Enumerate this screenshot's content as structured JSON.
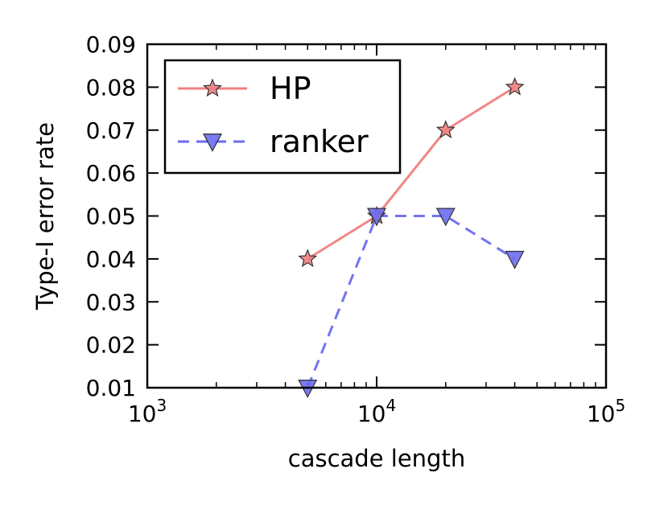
{
  "chart_data": {
    "type": "line",
    "title": "",
    "xlabel": "cascade length",
    "ylabel": "Type-I error rate",
    "xscale": "log",
    "xlim": [
      1000,
      100000
    ],
    "ylim": [
      0.01,
      0.09
    ],
    "grid": false,
    "legend_position": "top-left",
    "x_ticks": [
      {
        "value": 1000,
        "base": "10",
        "exp": "3"
      },
      {
        "value": 10000,
        "base": "10",
        "exp": "4"
      },
      {
        "value": 100000,
        "base": "10",
        "exp": "5"
      }
    ],
    "y_ticks": [
      {
        "value": 0.01,
        "label": "0.01"
      },
      {
        "value": 0.02,
        "label": "0.02"
      },
      {
        "value": 0.03,
        "label": "0.03"
      },
      {
        "value": 0.04,
        "label": "0.04"
      },
      {
        "value": 0.05,
        "label": "0.05"
      },
      {
        "value": 0.06,
        "label": "0.06"
      },
      {
        "value": 0.07,
        "label": "0.07"
      },
      {
        "value": 0.08,
        "label": "0.08"
      },
      {
        "value": 0.09,
        "label": "0.09"
      }
    ],
    "series": [
      {
        "name": "HP",
        "color": "#f08080",
        "marker": "star",
        "line_style": "solid",
        "x": [
          5000,
          10000,
          20000,
          40000
        ],
        "y": [
          0.04,
          0.05,
          0.07,
          0.08
        ]
      },
      {
        "name": "ranker",
        "color": "#6b6bef",
        "marker": "triangle-down",
        "line_style": "dashed",
        "x": [
          5000,
          10000,
          20000,
          40000
        ],
        "y": [
          0.01,
          0.05,
          0.05,
          0.04
        ]
      }
    ]
  }
}
